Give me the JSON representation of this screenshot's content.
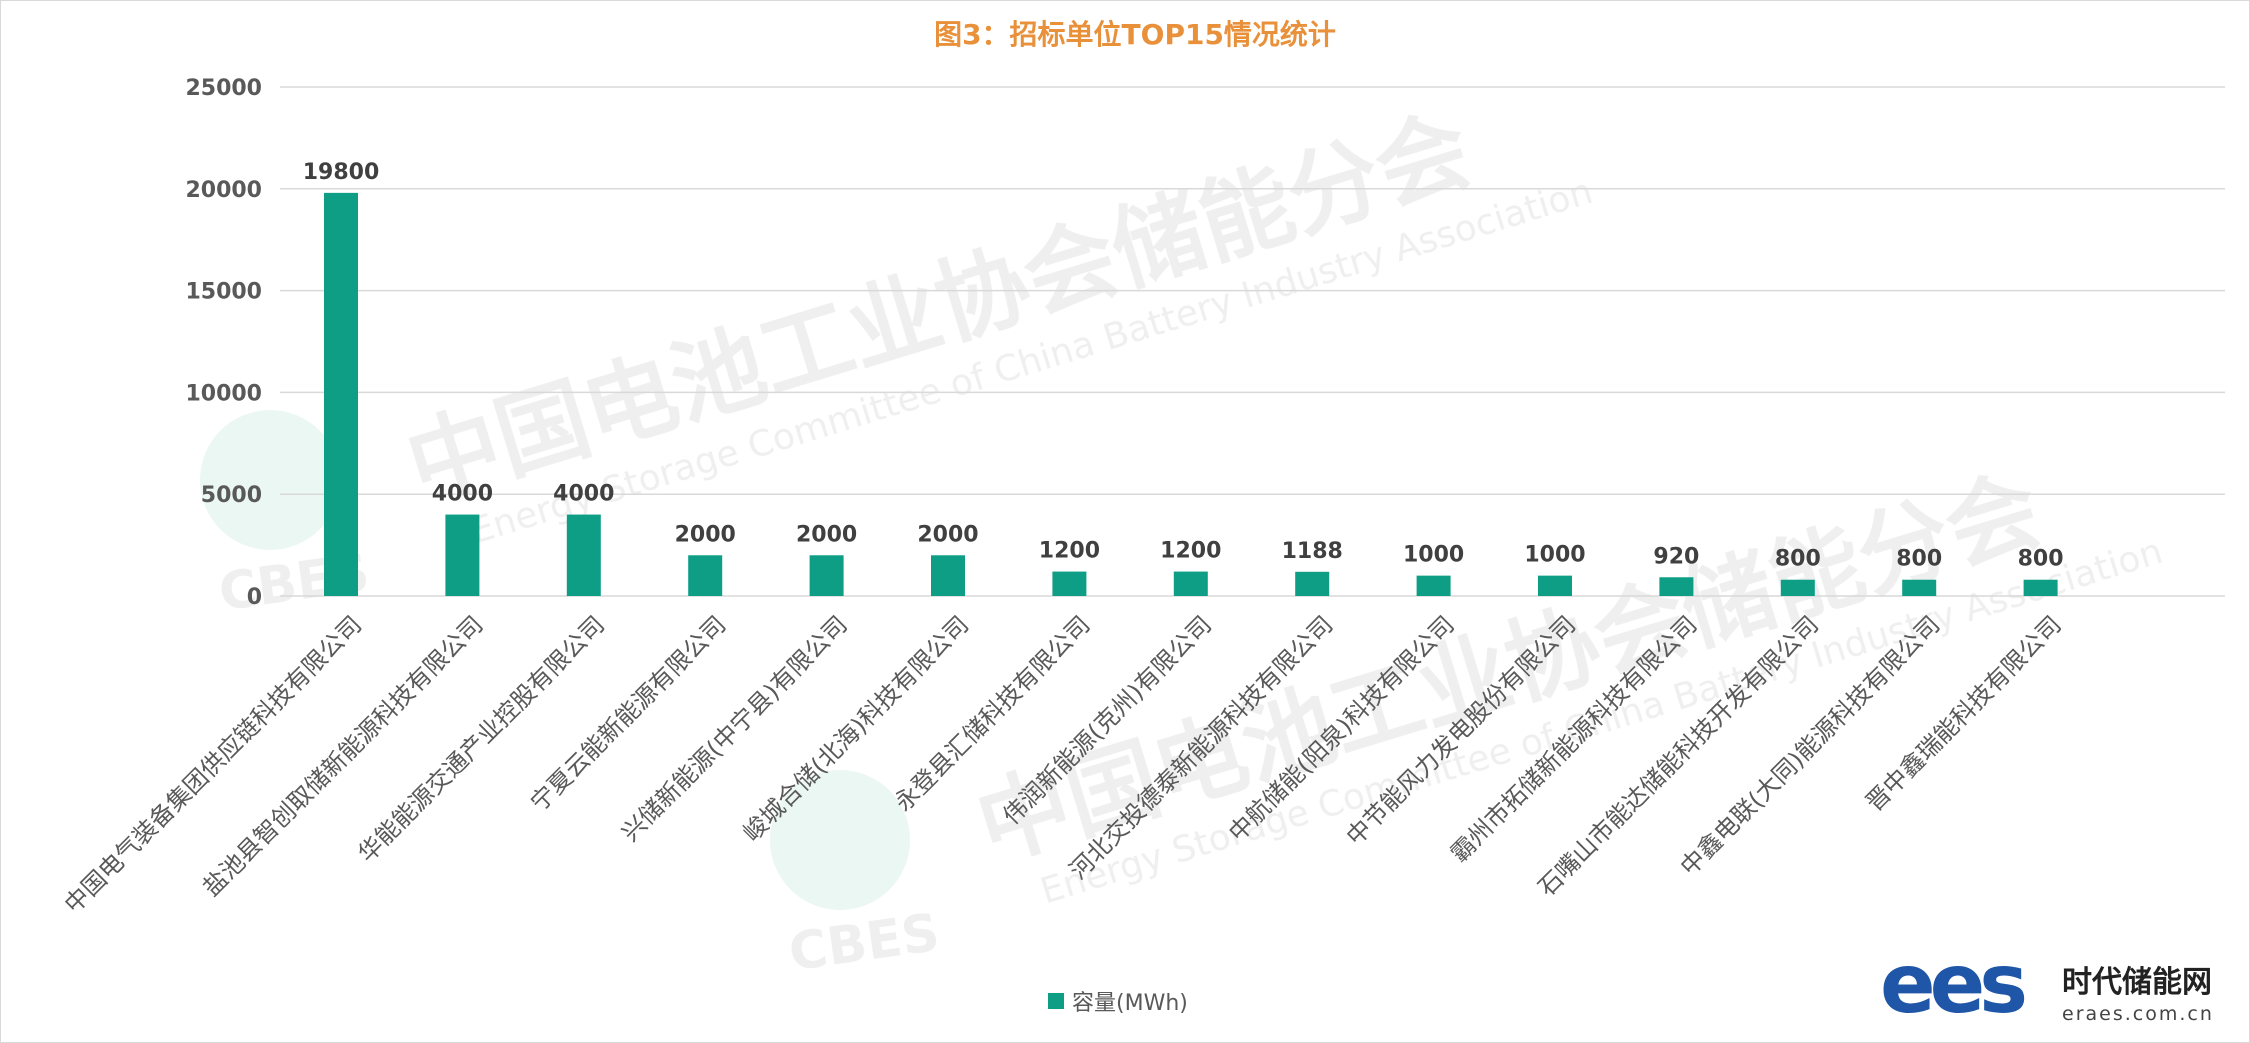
{
  "chart_data": {
    "type": "bar",
    "title": "图3：招标单位TOP15情况统计",
    "categories": [
      "中国电气装备集团供应链科技有限公司",
      "盐池县智创取储新能源科技有限公司",
      "华能能源交通产业控股有限公司",
      "宁夏云能新能源有限公司",
      "兴储新能源(中宁县)有限公司",
      "峻城合储(北海)科技有限公司",
      "永登县汇储科技有限公司",
      "伟润新能源(克州)有限公司",
      "河北交投德泰新能源科技有限公司",
      "中航储能(阳泉)科技有限公司",
      "中节能风力发电股份有限公司",
      "霸州市拓储新能源科技有限公司",
      "石嘴山市能达储能科技开发有限公司",
      "中鑫电联(大同)能源科技有限公司",
      "晋中鑫瑞能科技有限公司"
    ],
    "series": [
      {
        "name": "容量(MWh)",
        "values": [
          19800,
          4000,
          4000,
          2000,
          2000,
          2000,
          1200,
          1200,
          1188,
          1000,
          1000,
          920,
          800,
          800,
          800
        ]
      }
    ],
    "data_labels": [
      "19800",
      "4000",
      "4000",
      "2000",
      "2000",
      "2000",
      "1200",
      "1200",
      "1188",
      "1000",
      "1000",
      "920",
      "800",
      "800",
      "800"
    ],
    "yticks": [
      "0",
      "5000",
      "10000",
      "15000",
      "20000",
      "25000"
    ],
    "ylim": [
      0,
      25000
    ],
    "xlabel": "",
    "ylabel": "",
    "grid": true,
    "legend_position": "bottom",
    "colors": {
      "bar": "#0e9e86",
      "title": "#e8913a",
      "grid": "#d9d9d9",
      "axis_text": "#595959",
      "label": "#404040"
    }
  },
  "watermark": {
    "cn": "中国电池工业协会储能分会",
    "en": "Energy Storage Committee of China Battery Industry Association",
    "logo": "CBES"
  },
  "brand": {
    "logo": "ees",
    "name": "时代储能网",
    "url": "eraes.com.cn"
  }
}
